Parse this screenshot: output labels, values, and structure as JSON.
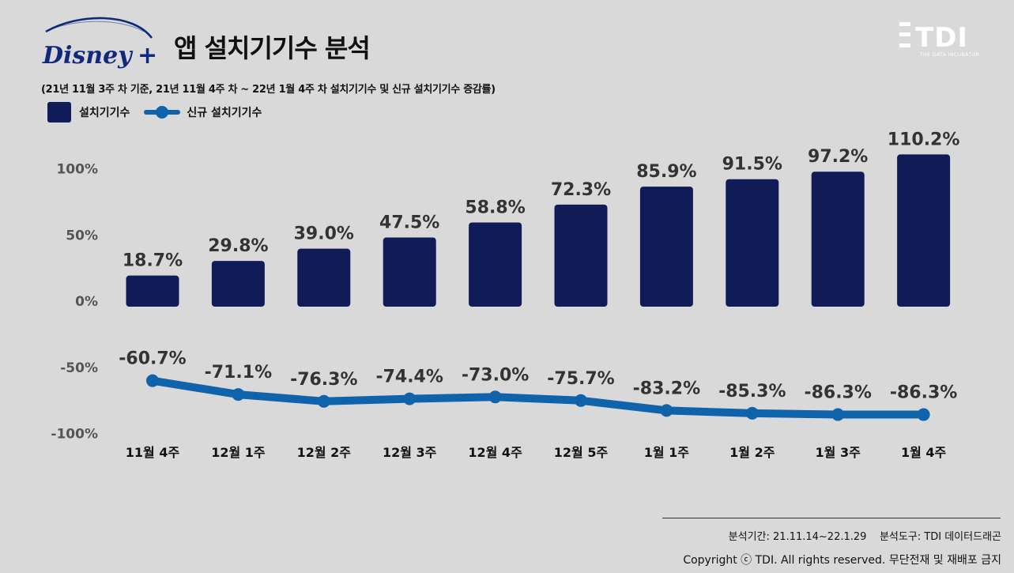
{
  "header": {
    "logo_text": "Disney+",
    "title": "앱 설치기기수 분석",
    "subtitle": "(21년 11월 3주 차 기준, 21년 11월 4주 차 ~ 22년 1월 4주 차 설치기기수 및 신규 설치기기수 증감률)",
    "brand_mark": "TDI",
    "brand_sub": "THE DATA INCUBATOR"
  },
  "legend": {
    "bar_label": "설치기기수",
    "line_label": "신규 설치기기수"
  },
  "colors": {
    "bar": "#0f1c57",
    "line": "#0f63aa",
    "background": "#d9d9d9",
    "value_label": "#333333",
    "axis_label": "#555555"
  },
  "chart_data": {
    "type": "bar",
    "categories": [
      "11월 4주",
      "12월 1주",
      "12월 2주",
      "12월 3주",
      "12월 4주",
      "12월 5주",
      "1월 1주",
      "1월 2주",
      "1월 3주",
      "1월 4주"
    ],
    "series": [
      {
        "name": "설치기기수",
        "type": "bar",
        "values": [
          18.7,
          29.8,
          39.0,
          47.5,
          58.8,
          72.3,
          85.9,
          91.5,
          97.2,
          110.2
        ],
        "labels": [
          "18.7%",
          "29.8%",
          "39.0%",
          "47.5%",
          "58.8%",
          "72.3%",
          "85.9%",
          "91.5%",
          "97.2%",
          "110.2%"
        ]
      },
      {
        "name": "신규 설치기기수",
        "type": "line",
        "values": [
          -60.7,
          -71.1,
          -76.3,
          -74.4,
          -73.0,
          -75.7,
          -83.2,
          -85.3,
          -86.3,
          -86.3
        ],
        "labels": [
          "-60.7%",
          "-71.1%",
          "-76.3%",
          "-74.4%",
          "-73.0%",
          "-75.7%",
          "-83.2%",
          "-85.3%",
          "-86.3%",
          "-86.3%"
        ]
      }
    ],
    "y_ticks": [
      100,
      50,
      0,
      -50,
      -100
    ],
    "y_tick_labels": [
      "100%",
      "50%",
      "0%",
      "-50%",
      "-100%"
    ],
    "ylim": [
      -100,
      110
    ],
    "grid": false,
    "legend_position": "top-left"
  },
  "footer": {
    "period": "분석기간: 21.11.14~22.1.29    분석도구: TDI 데이터드래곤",
    "copyright": "Copyright ⓒ TDI. All rights reserved. 무단전재 및 재배포 금지"
  }
}
